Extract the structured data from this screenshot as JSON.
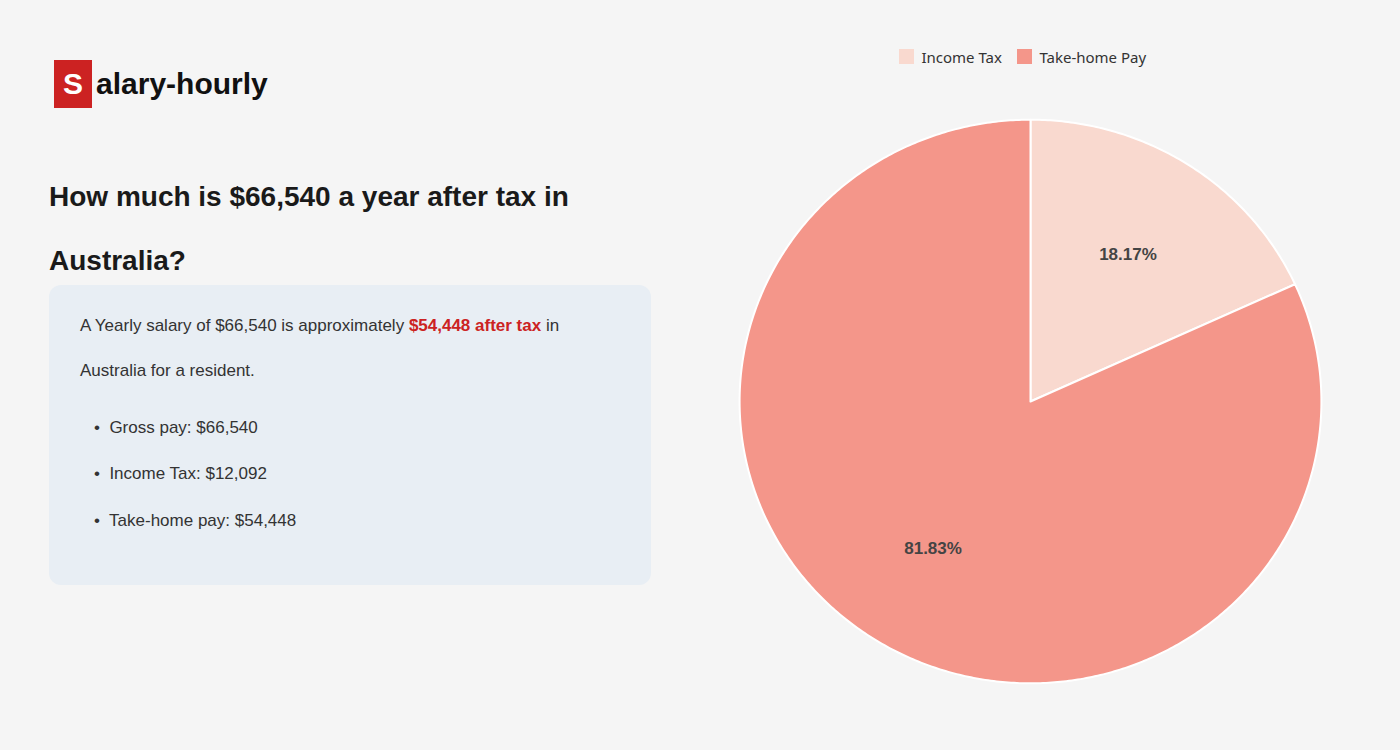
{
  "chart_data": {
    "type": "pie",
    "title": "How much is $66,540 a year after tax in\nAustralia?",
    "annotations": [
      "S",
      "alary-hourly",
      "A Yearly salary of $66,540 is approximately ",
      "$54,448 after tax",
      " in",
      "Australia for a resident.",
      "•  Gross pay: $66,540",
      "•  Income Tax: $12,092",
      "•  Take-home pay: $54,448"
    ],
    "categories": [
      "Income Tax",
      "Take-home Pay"
    ],
    "values": [
      18.17,
      81.83
    ],
    "value_labels": [
      "18.17%",
      "81.83%"
    ],
    "colors": [
      "#f9d9cf",
      "#f4968a"
    ],
    "data_labels": true,
    "legend": "top"
  }
}
